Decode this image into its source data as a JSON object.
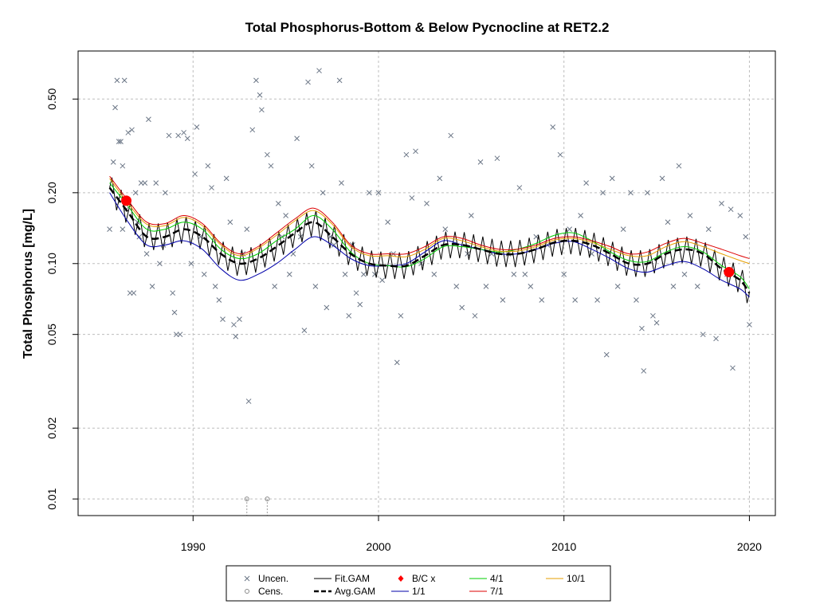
{
  "chart_data": {
    "type": "scatter",
    "title": "Total Phosphorus-Bottom & Below Pycnocline at RET2.2",
    "ylabel": "Total Phosphorus [mg/L]",
    "xlabel": "",
    "y_scale": "log",
    "xlim": [
      1983.8,
      2021.4
    ],
    "ylim": [
      0.0085,
      0.8
    ],
    "x_ticks": [
      1990,
      2000,
      2010,
      2020
    ],
    "x_tick_labels": [
      "1990",
      "2000",
      "2010",
      "2020"
    ],
    "y_ticks": [
      0.01,
      0.02,
      0.05,
      0.1,
      0.2,
      0.5
    ],
    "y_tick_labels": [
      "0.01",
      "0.02",
      "0.05",
      "0.10",
      "0.20",
      "0.50"
    ],
    "grid": true,
    "legend_position": "bottom",
    "colors": {
      "uncensored": "#6b7686",
      "censored": "#8a8a8a",
      "fit_gam": "#000000",
      "avg_gam": "#000000",
      "bc_points": "#ff0000",
      "r1_1": "#0000aa",
      "r4_1": "#00cc00",
      "r7_1": "#dd0000",
      "r10_1": "#e69f00"
    },
    "uncensored_points": [
      [
        1985.5,
        0.14
      ],
      [
        1985.7,
        0.27
      ],
      [
        1985.8,
        0.46
      ],
      [
        1985.9,
        0.6
      ],
      [
        1986.0,
        0.33
      ],
      [
        1986.1,
        0.33
      ],
      [
        1986.2,
        0.26
      ],
      [
        1986.2,
        0.14
      ],
      [
        1986.3,
        0.6
      ],
      [
        1986.4,
        0.17
      ],
      [
        1986.5,
        0.36
      ],
      [
        1986.6,
        0.075
      ],
      [
        1986.7,
        0.37
      ],
      [
        1986.8,
        0.075
      ],
      [
        1986.9,
        0.2
      ],
      [
        1987.0,
        0.15
      ],
      [
        1987.1,
        0.13
      ],
      [
        1987.2,
        0.22
      ],
      [
        1987.4,
        0.22
      ],
      [
        1987.5,
        0.11
      ],
      [
        1987.6,
        0.41
      ],
      [
        1987.8,
        0.08
      ],
      [
        1988.0,
        0.22
      ],
      [
        1988.2,
        0.1
      ],
      [
        1988.4,
        0.12
      ],
      [
        1988.5,
        0.2
      ],
      [
        1988.7,
        0.35
      ],
      [
        1988.9,
        0.075
      ],
      [
        1989.0,
        0.062
      ],
      [
        1989.1,
        0.05
      ],
      [
        1989.2,
        0.35
      ],
      [
        1989.3,
        0.05
      ],
      [
        1989.5,
        0.36
      ],
      [
        1989.7,
        0.34
      ],
      [
        1989.9,
        0.1
      ],
      [
        1990.1,
        0.24
      ],
      [
        1990.2,
        0.38
      ],
      [
        1990.4,
        0.13
      ],
      [
        1990.6,
        0.09
      ],
      [
        1990.8,
        0.26
      ],
      [
        1991.0,
        0.21
      ],
      [
        1991.2,
        0.08
      ],
      [
        1991.4,
        0.07
      ],
      [
        1991.6,
        0.058
      ],
      [
        1991.8,
        0.23
      ],
      [
        1992.0,
        0.15
      ],
      [
        1992.2,
        0.055
      ],
      [
        1992.3,
        0.049
      ],
      [
        1992.5,
        0.058
      ],
      [
        1992.7,
        0.11
      ],
      [
        1992.9,
        0.14
      ],
      [
        1993.0,
        0.026
      ],
      [
        1993.2,
        0.37
      ],
      [
        1993.4,
        0.6
      ],
      [
        1993.6,
        0.52
      ],
      [
        1993.7,
        0.45
      ],
      [
        1994.0,
        0.29
      ],
      [
        1994.2,
        0.26
      ],
      [
        1994.4,
        0.08
      ],
      [
        1994.6,
        0.18
      ],
      [
        1994.8,
        0.13
      ],
      [
        1995.0,
        0.16
      ],
      [
        1995.2,
        0.09
      ],
      [
        1995.4,
        0.11
      ],
      [
        1995.6,
        0.34
      ],
      [
        1995.8,
        0.13
      ],
      [
        1996.0,
        0.052
      ],
      [
        1996.2,
        0.59
      ],
      [
        1996.4,
        0.26
      ],
      [
        1996.6,
        0.08
      ],
      [
        1996.8,
        0.66
      ],
      [
        1997.0,
        0.2
      ],
      [
        1997.2,
        0.065
      ],
      [
        1997.4,
        0.13
      ],
      [
        1997.6,
        0.12
      ],
      [
        1997.9,
        0.6
      ],
      [
        1998.0,
        0.22
      ],
      [
        1998.2,
        0.09
      ],
      [
        1998.4,
        0.06
      ],
      [
        1998.6,
        0.12
      ],
      [
        1998.8,
        0.075
      ],
      [
        1999.0,
        0.067
      ],
      [
        1999.2,
        0.09
      ],
      [
        1999.5,
        0.2
      ],
      [
        1999.8,
        0.09
      ],
      [
        2000.0,
        0.2
      ],
      [
        2000.2,
        0.085
      ],
      [
        2000.5,
        0.15
      ],
      [
        2000.8,
        0.11
      ],
      [
        2001.0,
        0.038
      ],
      [
        2001.2,
        0.06
      ],
      [
        2001.5,
        0.29
      ],
      [
        2001.8,
        0.19
      ],
      [
        2002.0,
        0.3
      ],
      [
        2002.3,
        0.1
      ],
      [
        2002.6,
        0.18
      ],
      [
        2003.0,
        0.09
      ],
      [
        2003.3,
        0.23
      ],
      [
        2003.6,
        0.14
      ],
      [
        2003.9,
        0.35
      ],
      [
        2004.2,
        0.08
      ],
      [
        2004.5,
        0.065
      ],
      [
        2004.8,
        0.11
      ],
      [
        2005.0,
        0.16
      ],
      [
        2005.2,
        0.06
      ],
      [
        2005.5,
        0.27
      ],
      [
        2005.8,
        0.08
      ],
      [
        2006.1,
        0.11
      ],
      [
        2006.4,
        0.28
      ],
      [
        2006.7,
        0.07
      ],
      [
        2007.0,
        0.11
      ],
      [
        2007.3,
        0.09
      ],
      [
        2007.6,
        0.21
      ],
      [
        2007.9,
        0.09
      ],
      [
        2008.2,
        0.08
      ],
      [
        2008.5,
        0.13
      ],
      [
        2008.8,
        0.07
      ],
      [
        2009.1,
        0.12
      ],
      [
        2009.4,
        0.38
      ],
      [
        2009.8,
        0.29
      ],
      [
        2010.0,
        0.09
      ],
      [
        2010.3,
        0.14
      ],
      [
        2010.6,
        0.07
      ],
      [
        2010.9,
        0.16
      ],
      [
        2011.2,
        0.22
      ],
      [
        2011.5,
        0.11
      ],
      [
        2011.8,
        0.07
      ],
      [
        2012.1,
        0.2
      ],
      [
        2012.3,
        0.041
      ],
      [
        2012.6,
        0.23
      ],
      [
        2012.9,
        0.08
      ],
      [
        2013.2,
        0.14
      ],
      [
        2013.6,
        0.2
      ],
      [
        2013.9,
        0.07
      ],
      [
        2014.2,
        0.053
      ],
      [
        2014.3,
        0.035
      ],
      [
        2014.5,
        0.2
      ],
      [
        2014.8,
        0.06
      ],
      [
        2015.0,
        0.056
      ],
      [
        2015.3,
        0.23
      ],
      [
        2015.6,
        0.15
      ],
      [
        2015.9,
        0.08
      ],
      [
        2016.2,
        0.26
      ],
      [
        2016.5,
        0.09
      ],
      [
        2016.8,
        0.16
      ],
      [
        2017.2,
        0.08
      ],
      [
        2017.5,
        0.05
      ],
      [
        2017.8,
        0.14
      ],
      [
        2018.2,
        0.048
      ],
      [
        2018.5,
        0.18
      ],
      [
        2018.8,
        0.09
      ],
      [
        2019.0,
        0.17
      ],
      [
        2019.1,
        0.036
      ],
      [
        2019.5,
        0.16
      ],
      [
        2019.8,
        0.13
      ],
      [
        2020.0,
        0.055
      ]
    ],
    "censored_points": [
      [
        1992.9,
        0.01
      ],
      [
        1994.0,
        0.01
      ]
    ],
    "bc_points": [
      [
        1986.4,
        0.185
      ],
      [
        2018.9,
        0.092
      ]
    ],
    "series": [
      {
        "name": "Avg.GAM",
        "x": [
          1985.5,
          1986.5,
          1987.5,
          1988.5,
          1989.5,
          1990.5,
          1991.5,
          1992.5,
          1993.5,
          1994.5,
          1995.5,
          1996.5,
          1997.5,
          1998.5,
          1999.5,
          2000.5,
          2001.5,
          2002.5,
          2003.5,
          2004.5,
          2005.5,
          2006.5,
          2007.5,
          2008.5,
          2009.5,
          2010.5,
          2011.5,
          2012.5,
          2013.5,
          2014.5,
          2015.5,
          2016.5,
          2017.5,
          2018.5,
          2019.5,
          2020.0
        ],
        "values": [
          0.21,
          0.165,
          0.13,
          0.13,
          0.14,
          0.13,
          0.11,
          0.1,
          0.105,
          0.118,
          0.135,
          0.15,
          0.13,
          0.11,
          0.1,
          0.098,
          0.098,
          0.108,
          0.12,
          0.12,
          0.115,
          0.11,
          0.11,
          0.115,
          0.123,
          0.125,
          0.12,
          0.11,
          0.1,
          0.1,
          0.11,
          0.115,
          0.11,
          0.095,
          0.085,
          0.075
        ]
      },
      {
        "name": "1/1",
        "x": [
          1985.5,
          1986.5,
          1987.5,
          1988.5,
          1989.5,
          1990.5,
          1991.5,
          1992.5,
          1993.5,
          1994.5,
          1995.5,
          1996.5,
          1997.5,
          1998.5,
          1999.5,
          2000.5,
          2001.5,
          2002.5,
          2003.5,
          2004.5,
          2005.5,
          2006.5,
          2007.5,
          2008.5,
          2009.5,
          2010.5,
          2011.5,
          2012.5,
          2013.5,
          2014.5,
          2015.5,
          2016.5,
          2017.5,
          2018.5,
          2019.5,
          2020.0
        ],
        "values": [
          0.2,
          0.15,
          0.12,
          0.12,
          0.125,
          0.115,
          0.095,
          0.085,
          0.09,
          0.1,
          0.115,
          0.13,
          0.12,
          0.105,
          0.098,
          0.098,
          0.1,
          0.112,
          0.125,
          0.12,
          0.115,
          0.11,
          0.11,
          0.115,
          0.122,
          0.124,
          0.115,
          0.105,
          0.095,
          0.092,
          0.098,
          0.102,
          0.095,
          0.085,
          0.078,
          0.072
        ]
      },
      {
        "name": "4/1",
        "x": [
          1985.5,
          1986.5,
          1987.5,
          1988.5,
          1989.5,
          1990.5,
          1991.5,
          1992.5,
          1993.5,
          1994.5,
          1995.5,
          1996.5,
          1997.5,
          1998.5,
          1999.5,
          2000.5,
          2001.5,
          2002.5,
          2003.5,
          2004.5,
          2005.5,
          2006.5,
          2007.5,
          2008.5,
          2009.5,
          2010.5,
          2011.5,
          2012.5,
          2013.5,
          2014.5,
          2015.5,
          2016.5,
          2017.5,
          2018.5,
          2019.5,
          2020.0
        ],
        "values": [
          0.22,
          0.175,
          0.14,
          0.14,
          0.15,
          0.14,
          0.115,
          0.105,
          0.11,
          0.125,
          0.14,
          0.16,
          0.14,
          0.112,
          0.1,
          0.098,
          0.097,
          0.105,
          0.118,
          0.118,
          0.115,
          0.112,
          0.115,
          0.122,
          0.132,
          0.135,
          0.125,
          0.112,
          0.103,
          0.102,
          0.112,
          0.118,
          0.112,
          0.098,
          0.088,
          0.078
        ]
      },
      {
        "name": "7/1",
        "x": [
          1985.5,
          1986.5,
          1987.5,
          1988.5,
          1989.5,
          1990.5,
          1991.5,
          1992.5,
          1993.5,
          1994.5,
          1995.5,
          1996.5,
          1997.5,
          1998.5,
          1999.5,
          2000.5,
          2001.5,
          2002.5,
          2003.5,
          2004.5,
          2005.5,
          2006.5,
          2007.5,
          2008.5,
          2009.5,
          2010.5,
          2011.5,
          2012.5,
          2013.5,
          2014.5,
          2015.5,
          2016.5,
          2017.5,
          2018.5,
          2019.5,
          2020.0
        ],
        "values": [
          0.235,
          0.185,
          0.15,
          0.148,
          0.16,
          0.148,
          0.122,
          0.11,
          0.118,
          0.135,
          0.155,
          0.172,
          0.15,
          0.12,
          0.11,
          0.11,
          0.11,
          0.118,
          0.13,
          0.128,
          0.12,
          0.115,
          0.115,
          0.12,
          0.128,
          0.13,
          0.125,
          0.118,
          0.11,
          0.112,
          0.122,
          0.128,
          0.122,
          0.115,
          0.108,
          0.105
        ]
      },
      {
        "name": "10/1",
        "x": [
          1985.5,
          1986.5,
          1987.5,
          1988.5,
          1989.5,
          1990.5,
          1991.5,
          1992.5,
          1993.5,
          1994.5,
          1995.5,
          1996.5,
          1997.5,
          1998.5,
          1999.5,
          2000.5,
          2001.5,
          2002.5,
          2003.5,
          2004.5,
          2005.5,
          2006.5,
          2007.5,
          2008.5,
          2009.5,
          2010.5,
          2011.5,
          2012.5,
          2013.5,
          2014.5,
          2015.5,
          2016.5,
          2017.5,
          2018.5,
          2019.5,
          2020.0
        ],
        "values": [
          0.23,
          0.18,
          0.147,
          0.145,
          0.157,
          0.145,
          0.12,
          0.108,
          0.116,
          0.132,
          0.152,
          0.168,
          0.147,
          0.118,
          0.108,
          0.108,
          0.107,
          0.115,
          0.128,
          0.125,
          0.118,
          0.113,
          0.113,
          0.118,
          0.126,
          0.128,
          0.123,
          0.115,
          0.108,
          0.108,
          0.118,
          0.124,
          0.118,
          0.11,
          0.103,
          0.1
        ]
      }
    ],
    "fit_gam": {
      "name": "Fit.GAM",
      "amplitude": 0.13,
      "period_years": 0.5
    },
    "legend": [
      {
        "symbol": "x",
        "label": "Uncen."
      },
      {
        "symbol": "line",
        "label": "Fit.GAM"
      },
      {
        "symbol": "diamond",
        "label": "B/C x"
      },
      {
        "symbol": "line",
        "label": "4/1"
      },
      {
        "symbol": "line",
        "label": "10/1"
      },
      {
        "symbol": "circle",
        "label": "Cens."
      },
      {
        "symbol": "dashed",
        "label": "Avg.GAM"
      },
      {
        "symbol": "line",
        "label": "1/1"
      },
      {
        "symbol": "line",
        "label": "7/1"
      }
    ]
  }
}
